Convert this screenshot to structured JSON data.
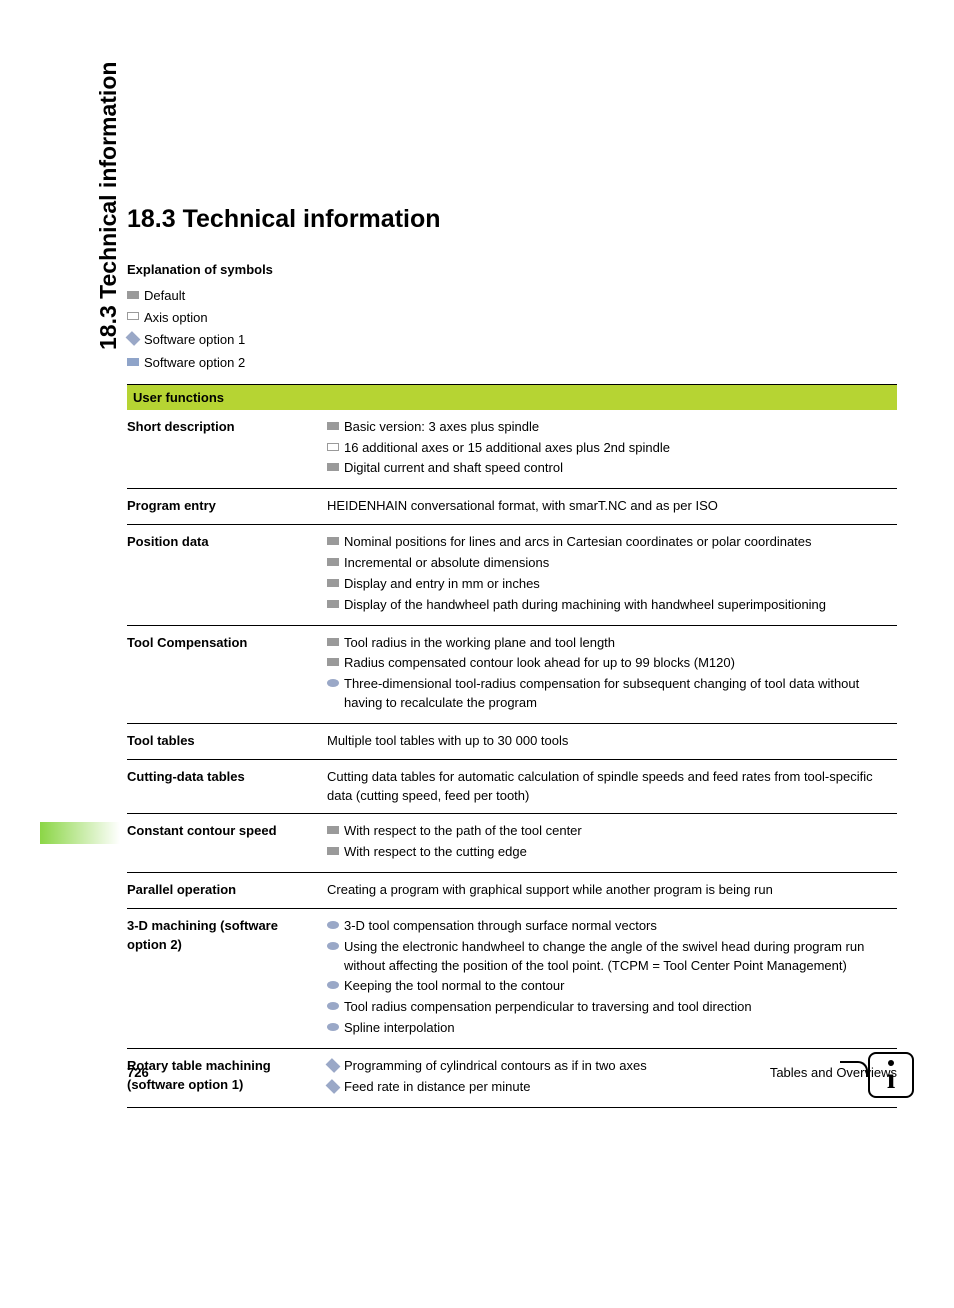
{
  "side_title": "18.3 Technical information",
  "heading": "18.3 Technical information",
  "explanation_heading": "Explanation of symbols",
  "legend": {
    "default": "Default",
    "axis": "Axis option",
    "sw1": "Software option 1",
    "sw2": "Software option 2"
  },
  "table_header": "User functions",
  "rows": [
    {
      "key": "Short description",
      "items": [
        {
          "sym": "default",
          "text": "Basic version: 3 axes plus spindle"
        },
        {
          "sym": "axis",
          "text": "16 additional axes or 15 additional axes plus 2nd spindle"
        },
        {
          "sym": "default",
          "text": "Digital current and shaft speed control"
        }
      ]
    },
    {
      "key": "Program entry",
      "plain": "HEIDENHAIN conversational format, with smarT.NC and as per ISO"
    },
    {
      "key": "Position data",
      "items": [
        {
          "sym": "default",
          "text": "Nominal positions for lines and arcs in Cartesian coordinates or polar coordinates"
        },
        {
          "sym": "default",
          "text": "Incremental or absolute dimensions"
        },
        {
          "sym": "default",
          "text": "Display and entry in mm or inches"
        },
        {
          "sym": "default",
          "text": "Display of the handwheel path during machining with handwheel superimpositioning"
        }
      ]
    },
    {
      "key": "Tool Compensation",
      "items": [
        {
          "sym": "default",
          "text": "Tool radius in the working plane and tool length"
        },
        {
          "sym": "default",
          "text": "Radius compensated contour look ahead for up to 99 blocks (M120)"
        },
        {
          "sym": "circle",
          "text": "Three-dimensional tool-radius compensation for subsequent changing of tool data without having to recalculate the program"
        }
      ]
    },
    {
      "key": "Tool tables",
      "plain": "Multiple tool tables with up to 30 000 tools"
    },
    {
      "key": "Cutting-data tables",
      "plain": "Cutting data tables for automatic calculation of spindle speeds and feed rates from tool-specific data (cutting speed, feed per tooth)"
    },
    {
      "key": "Constant contour speed",
      "items": [
        {
          "sym": "default",
          "text": "With respect to the path of the tool center"
        },
        {
          "sym": "default",
          "text": "With respect to the cutting edge"
        }
      ]
    },
    {
      "key": "Parallel operation",
      "plain": "Creating a program with graphical support while another program is being run"
    },
    {
      "key": "3-D machining (software option 2)",
      "items": [
        {
          "sym": "circle",
          "text": "3-D tool compensation through surface normal vectors"
        },
        {
          "sym": "circle",
          "text": "Using the electronic handwheel to change the angle of the swivel head during program run without affecting the position of the tool point. (TCPM = Tool Center Point Management)"
        },
        {
          "sym": "circle",
          "text": "Keeping the tool normal to the contour"
        },
        {
          "sym": "circle",
          "text": "Tool radius compensation perpendicular to traversing and tool direction"
        },
        {
          "sym": "circle",
          "text": "Spline interpolation"
        }
      ]
    },
    {
      "key": "Rotary table machining (software option 1)",
      "items": [
        {
          "sym": "diamond",
          "text": "Programming of cylindrical contours as if in two axes"
        },
        {
          "sym": "diamond",
          "text": "Feed rate in distance per minute"
        }
      ]
    }
  ],
  "footer": {
    "page": "726",
    "section": "Tables and Overviews"
  },
  "colors": {
    "header_bg": "#b6d433",
    "tab_gradient_from": "#8bd646",
    "sym_gray": "#9a9a9a",
    "sym_blue": "#9aa8c7"
  }
}
